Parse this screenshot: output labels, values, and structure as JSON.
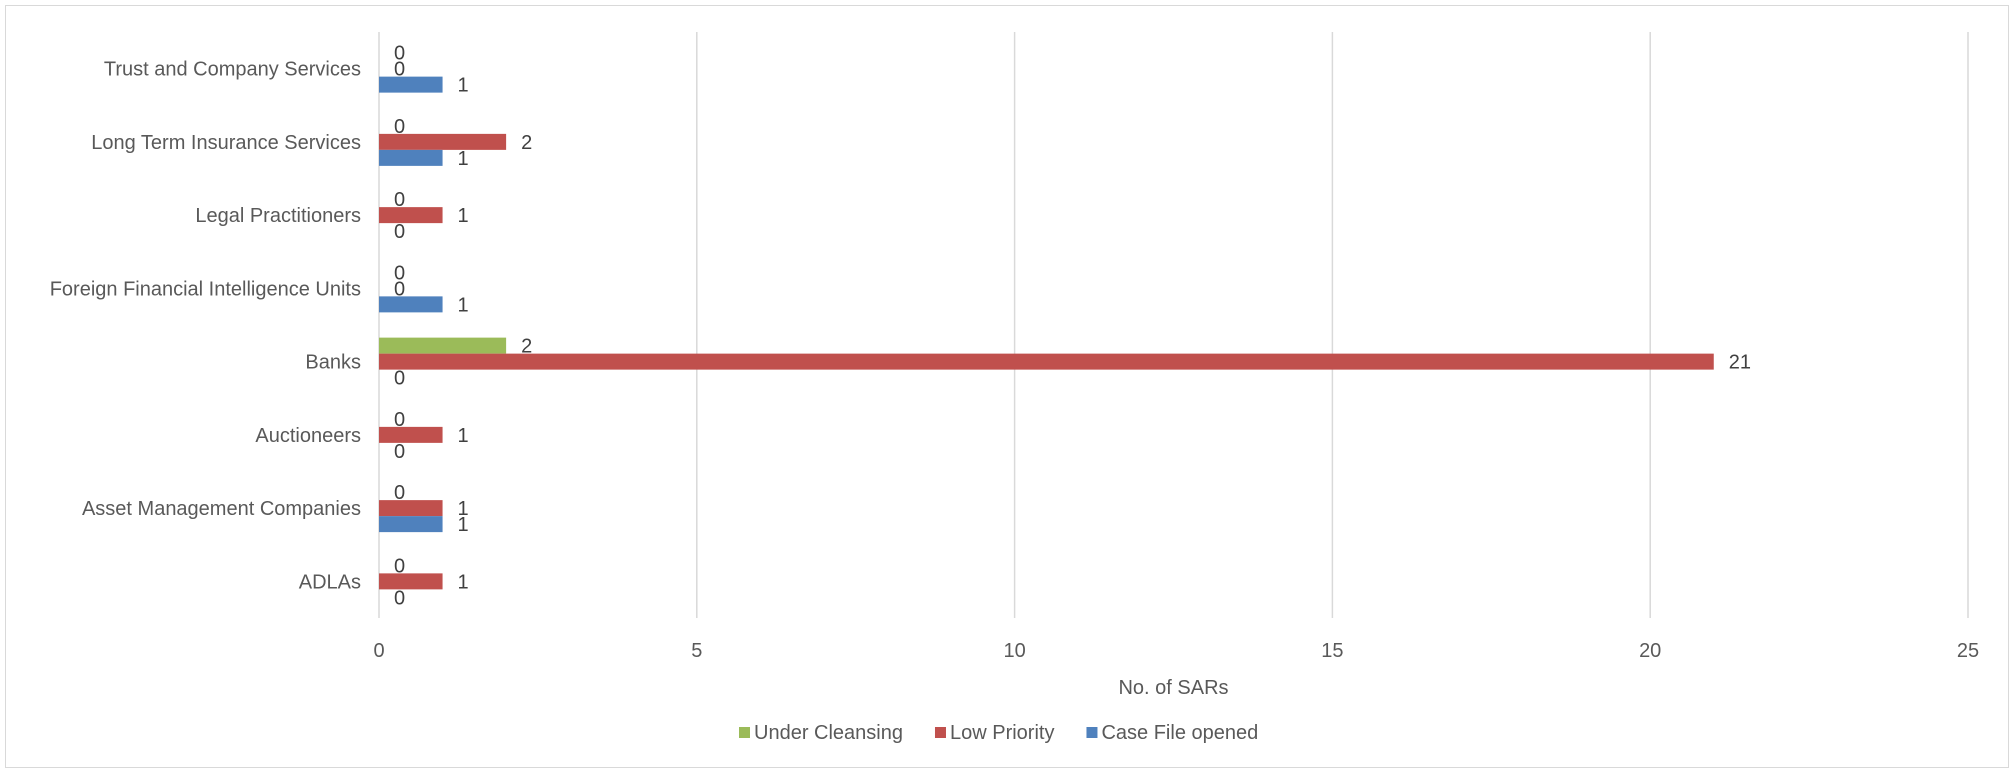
{
  "chart_data": {
    "type": "bar",
    "orientation": "horizontal",
    "title": "",
    "xlabel": "No. of SARs",
    "ylabel": "",
    "xlim": [
      0,
      25
    ],
    "x_ticks": [
      0,
      5,
      10,
      15,
      20,
      25
    ],
    "grid": "vertical major gridlines",
    "legend_position": "bottom",
    "categories": [
      "ADLAs",
      "Asset Management Companies",
      "Auctioneers",
      "Banks",
      "Foreign Financial Intelligence Units",
      "Legal Practitioners",
      "Long Term Insurance Services",
      "Trust and Company Services"
    ],
    "series": [
      {
        "name": "Under Cleansing",
        "color": "#9bbb59",
        "values": [
          0,
          0,
          0,
          2,
          0,
          0,
          0,
          0
        ]
      },
      {
        "name": "Low Priority",
        "color": "#c0504d",
        "values": [
          1,
          1,
          1,
          21,
          0,
          1,
          2,
          0
        ]
      },
      {
        "name": "Case File opened",
        "color": "#4f81bd",
        "values": [
          0,
          1,
          0,
          0,
          1,
          0,
          1,
          1
        ]
      }
    ]
  }
}
